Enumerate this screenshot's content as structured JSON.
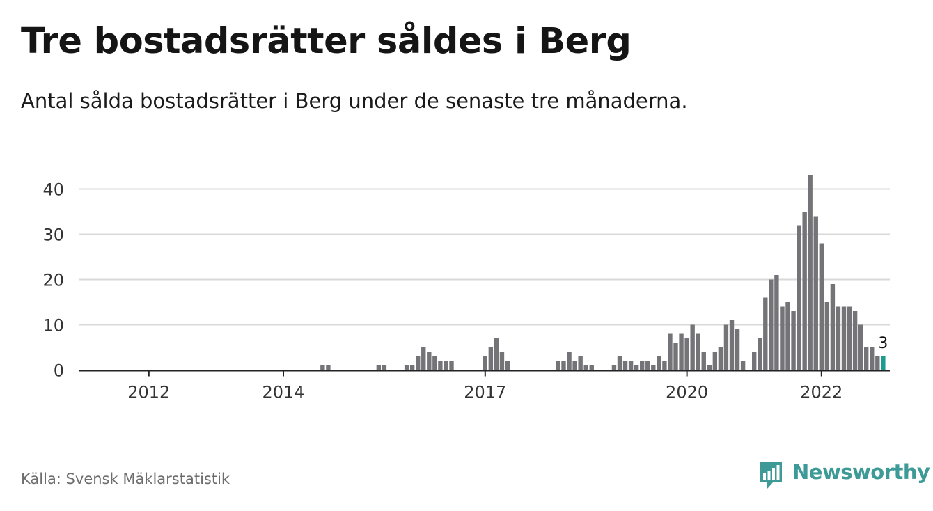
{
  "header": {
    "title": "Tre bostadsrätter såldes i Berg",
    "subtitle": "Antal sålda bostadsrätter i Berg under de senaste tre månaderna."
  },
  "footer": {
    "source": "Källa: Svensk Mäklarstatistik",
    "brand_name": "Newsworthy",
    "brand_icon": "bar-chart-speech-bubble-icon"
  },
  "colors": {
    "bar": "#747478",
    "highlight": "#1e9a8e",
    "grid": "#d9d9d9",
    "axis": "#222222",
    "brand": "#3d9a97"
  },
  "chart_data": {
    "type": "bar",
    "x_start": "2011-01",
    "x_end": "2022-11",
    "x_ticks": [
      "2012",
      "2014",
      "2017",
      "2020",
      "2022"
    ],
    "y_ticks": [
      0,
      10,
      20,
      30,
      40
    ],
    "ylim": [
      0,
      45
    ],
    "grid": true,
    "highlight_last": true,
    "annotation": {
      "text": "3",
      "target": "last"
    },
    "values": [
      0,
      0,
      0,
      0,
      0,
      0,
      0,
      0,
      0,
      0,
      0,
      0,
      0,
      0,
      0,
      0,
      0,
      0,
      0,
      0,
      0,
      0,
      0,
      0,
      0,
      0,
      0,
      0,
      0,
      0,
      0,
      0,
      0,
      0,
      0,
      0,
      0,
      0,
      0,
      0,
      0,
      0,
      0,
      1,
      1,
      0,
      0,
      0,
      0,
      0,
      0,
      0,
      0,
      1,
      1,
      0,
      0,
      0,
      1,
      1,
      3,
      5,
      4,
      3,
      2,
      2,
      2,
      0,
      0,
      0,
      0,
      0,
      3,
      5,
      7,
      4,
      2,
      0,
      0,
      0,
      0,
      0,
      0,
      0,
      0,
      2,
      2,
      4,
      2,
      3,
      1,
      1,
      0,
      0,
      0,
      1,
      3,
      2,
      2,
      1,
      2,
      2,
      1,
      3,
      2,
      8,
      6,
      8,
      7,
      10,
      8,
      4,
      1,
      4,
      5,
      10,
      11,
      9,
      2,
      0,
      4,
      7,
      16,
      20,
      21,
      14,
      15,
      13,
      32,
      35,
      43,
      34,
      28,
      15,
      19,
      14,
      14,
      14,
      13,
      10,
      5,
      5,
      3,
      3
    ]
  }
}
